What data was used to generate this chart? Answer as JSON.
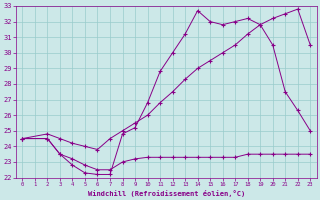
{
  "xlabel": "Windchill (Refroidissement éolien,°C)",
  "xlim": [
    -0.5,
    23.5
  ],
  "ylim": [
    22,
    33
  ],
  "xticks": [
    0,
    1,
    2,
    3,
    4,
    5,
    6,
    7,
    8,
    9,
    10,
    11,
    12,
    13,
    14,
    15,
    16,
    17,
    18,
    19,
    20,
    21,
    22,
    23
  ],
  "yticks": [
    22,
    23,
    24,
    25,
    26,
    27,
    28,
    29,
    30,
    31,
    32,
    33
  ],
  "bg_color": "#cce8e8",
  "line_color": "#880088",
  "grid_color": "#99cccc",
  "series": [
    {
      "comment": "top spiky curve - rises high then falls",
      "x": [
        0,
        2,
        3,
        4,
        5,
        6,
        7,
        8,
        9,
        10,
        11,
        12,
        13,
        14,
        15,
        16,
        17,
        18,
        19,
        20,
        21,
        22,
        23
      ],
      "y": [
        24.5,
        24.5,
        23.5,
        22.8,
        22.3,
        22.2,
        22.2,
        24.8,
        25.2,
        26.8,
        28.8,
        30.0,
        31.2,
        32.7,
        32.0,
        31.8,
        32.0,
        32.2,
        31.8,
        30.5,
        27.5,
        26.3,
        25.0
      ]
    },
    {
      "comment": "middle smooth curve - steadily rises",
      "x": [
        0,
        2,
        3,
        4,
        5,
        6,
        7,
        8,
        9,
        10,
        11,
        12,
        13,
        14,
        15,
        16,
        17,
        18,
        19,
        20,
        21,
        22,
        23
      ],
      "y": [
        24.5,
        24.8,
        24.5,
        24.2,
        24.0,
        23.8,
        24.5,
        25.0,
        25.5,
        26.0,
        26.8,
        27.5,
        28.3,
        29.0,
        29.5,
        30.0,
        30.5,
        31.2,
        31.8,
        32.2,
        32.5,
        32.8,
        30.5
      ]
    },
    {
      "comment": "bottom flat curve - dips and stays low",
      "x": [
        0,
        2,
        3,
        4,
        5,
        6,
        7,
        8,
        9,
        10,
        11,
        12,
        13,
        14,
        15,
        16,
        17,
        18,
        19,
        20,
        21,
        22,
        23
      ],
      "y": [
        24.5,
        24.5,
        23.5,
        23.2,
        22.8,
        22.5,
        22.5,
        23.0,
        23.2,
        23.3,
        23.3,
        23.3,
        23.3,
        23.3,
        23.3,
        23.3,
        23.3,
        23.5,
        23.5,
        23.5,
        23.5,
        23.5,
        23.5
      ]
    }
  ]
}
